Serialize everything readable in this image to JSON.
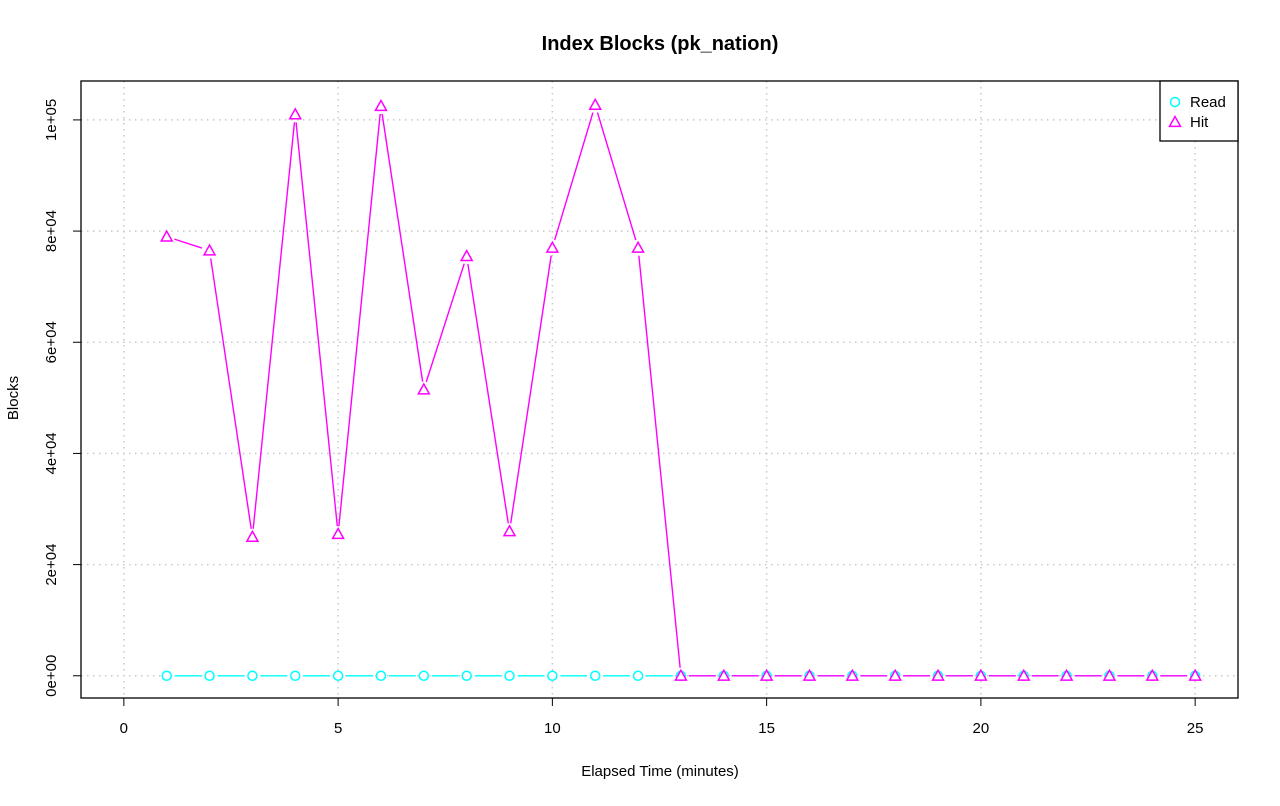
{
  "chart_data": {
    "type": "line",
    "title": "Index Blocks (pk_nation)",
    "xlabel": "Elapsed Time (minutes)",
    "ylabel": "Blocks",
    "xlim": [
      -1,
      26
    ],
    "ylim": [
      -4000,
      107000
    ],
    "x_ticks": [
      0,
      5,
      10,
      15,
      20,
      25
    ],
    "x_tick_labels": [
      "0",
      "5",
      "10",
      "15",
      "20",
      "25"
    ],
    "y_ticks": [
      0,
      20000,
      40000,
      60000,
      80000,
      100000
    ],
    "y_tick_labels": [
      "0e+00",
      "2e+04",
      "4e+04",
      "6e+04",
      "8e+04",
      "1e+05"
    ],
    "grid": true,
    "legend_position": "top-right",
    "x": [
      1,
      2,
      3,
      4,
      5,
      6,
      7,
      8,
      9,
      10,
      11,
      12,
      13,
      14,
      15,
      16,
      17,
      18,
      19,
      20,
      21,
      22,
      23,
      24,
      25
    ],
    "series": [
      {
        "name": "Read",
        "color": "#00ffff",
        "marker": "circle",
        "values": [
          0,
          0,
          0,
          0,
          0,
          0,
          0,
          0,
          0,
          0,
          0,
          0,
          0,
          0,
          0,
          0,
          0,
          0,
          0,
          0,
          0,
          0,
          0,
          0,
          0
        ]
      },
      {
        "name": "Hit",
        "color": "#ff00ff",
        "marker": "triangle",
        "values": [
          79000,
          76500,
          25000,
          101000,
          25500,
          102500,
          51500,
          75500,
          26000,
          77000,
          102700,
          77000,
          0,
          0,
          0,
          0,
          0,
          0,
          0,
          0,
          0,
          0,
          0,
          0,
          0
        ]
      }
    ]
  }
}
